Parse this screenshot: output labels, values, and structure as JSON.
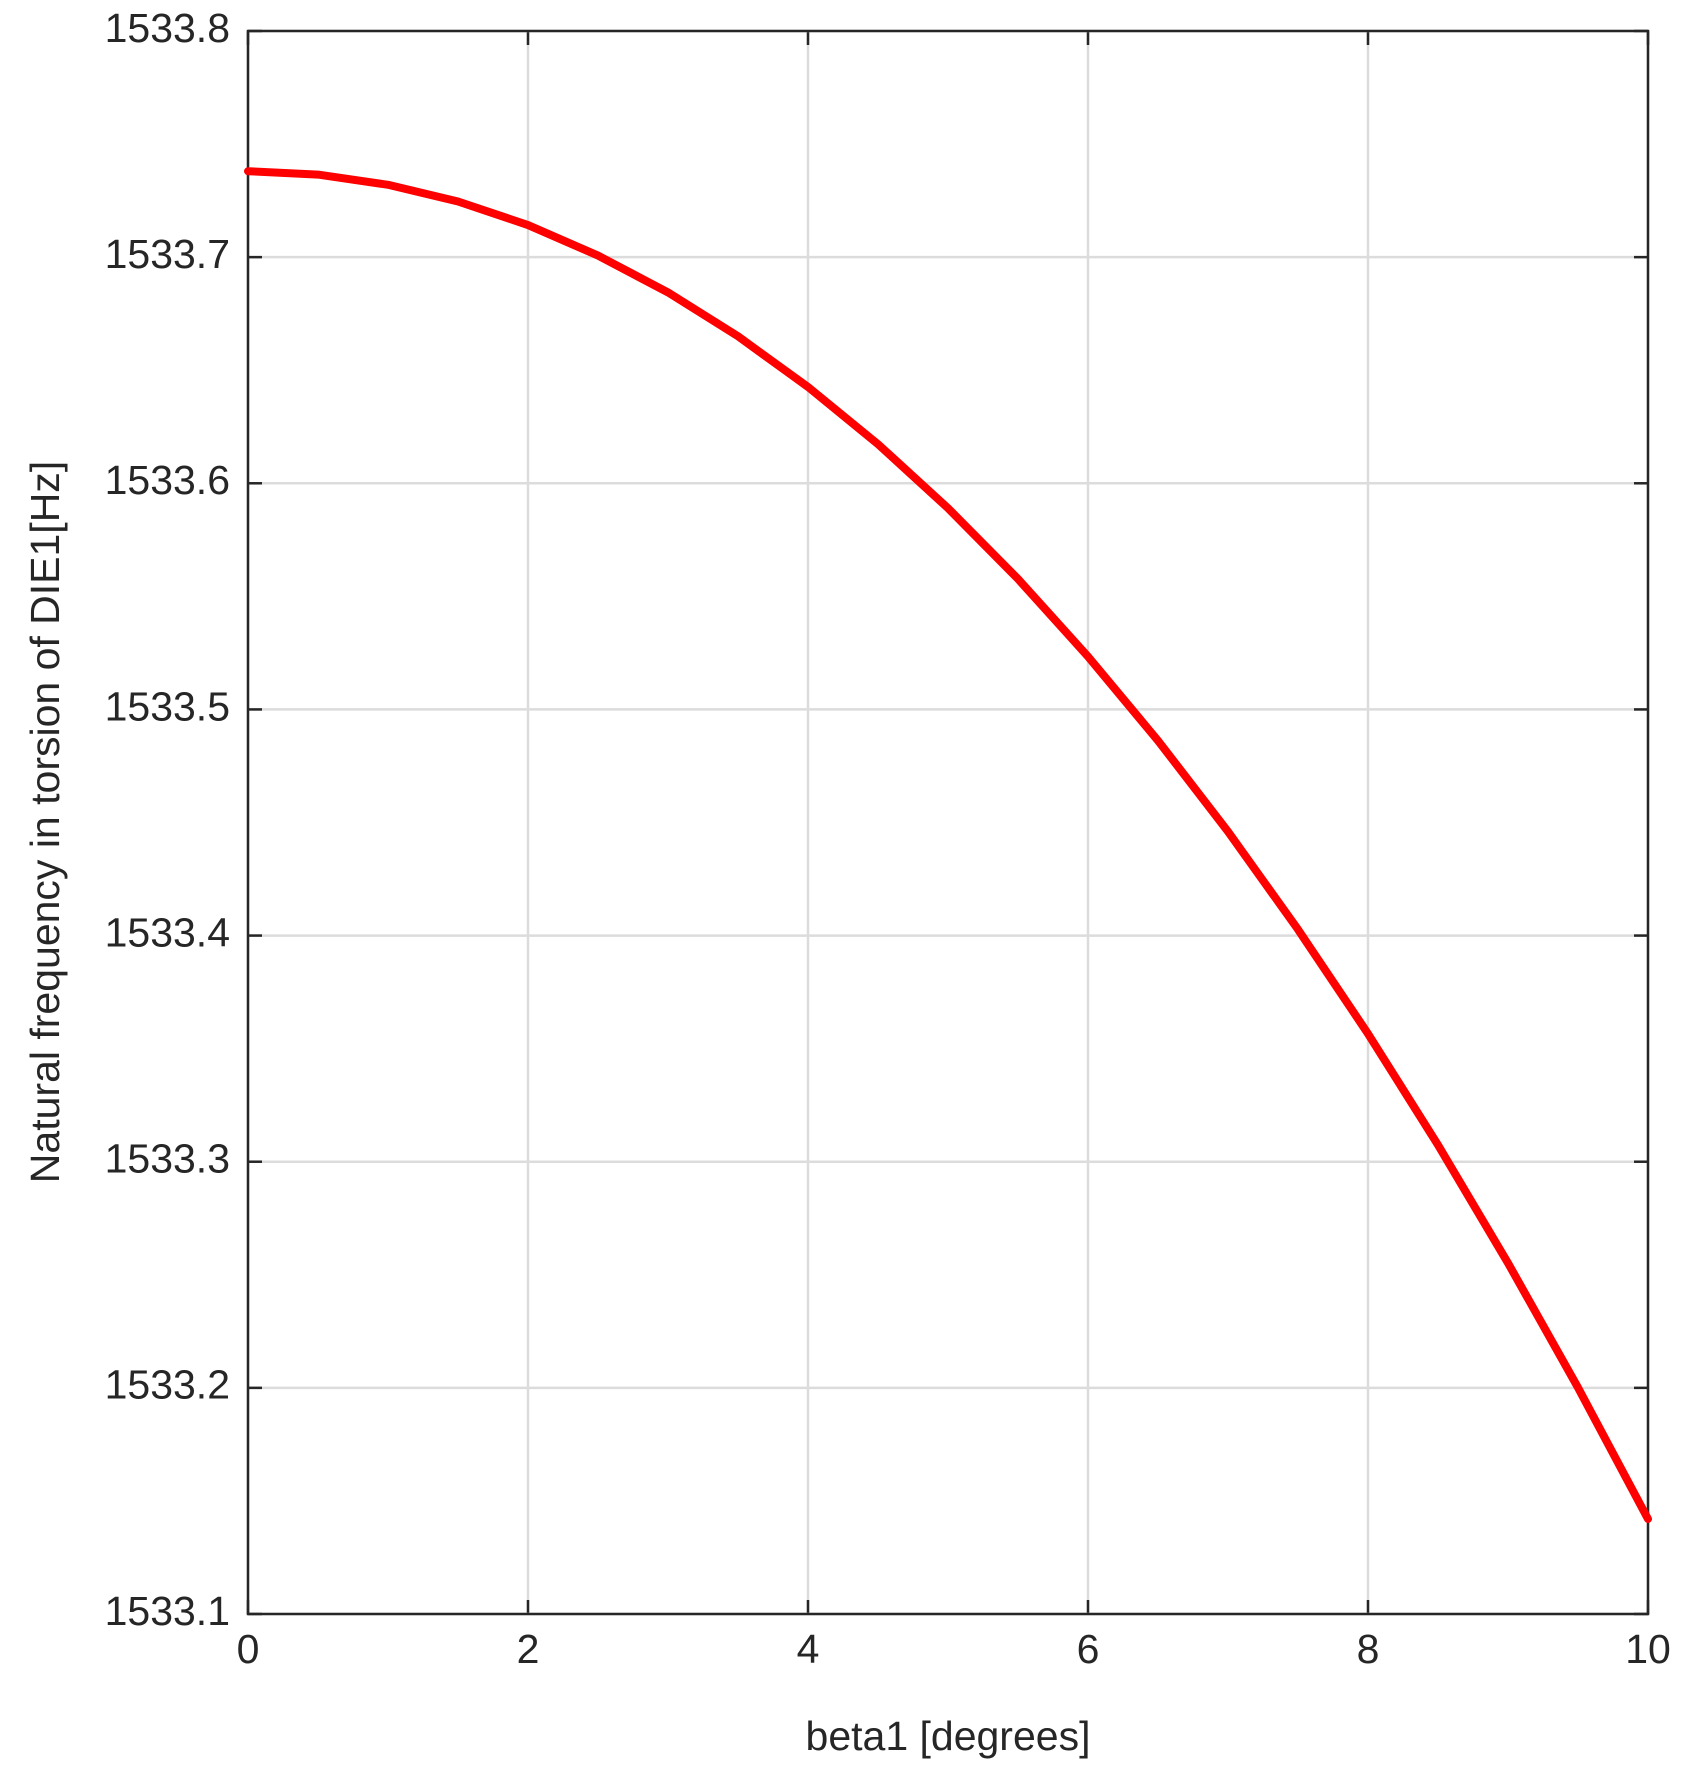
{
  "chart_data": {
    "type": "line",
    "xlabel": "beta1 [degrees]",
    "ylabel": "Natural frequency in torsion of DIE1[Hz]",
    "x": [
      0,
      0.5,
      1,
      1.5,
      2,
      2.5,
      3,
      3.5,
      4,
      4.5,
      5,
      5.5,
      6,
      6.5,
      7,
      7.5,
      8,
      8.5,
      9,
      9.5,
      10
    ],
    "series": [
      {
        "color": "#ff0000",
        "values": [
          1533.738,
          1533.7365,
          1533.732,
          1533.7246,
          1533.7142,
          1533.7007,
          1533.6844,
          1533.665,
          1533.6426,
          1533.6173,
          1533.589,
          1533.5577,
          1533.5234,
          1533.4862,
          1533.446,
          1533.4027,
          1533.3566,
          1533.3074,
          1533.2552,
          1533.2001,
          1533.142
        ]
      }
    ],
    "xlim": [
      0,
      10
    ],
    "xticks": [
      0,
      2,
      4,
      6,
      8,
      10
    ],
    "ylim": [
      1533.1,
      1533.8
    ],
    "yticks": [
      1533.1,
      1533.2,
      1533.3,
      1533.4,
      1533.5,
      1533.6,
      1533.7,
      1533.8
    ],
    "grid": true
  }
}
